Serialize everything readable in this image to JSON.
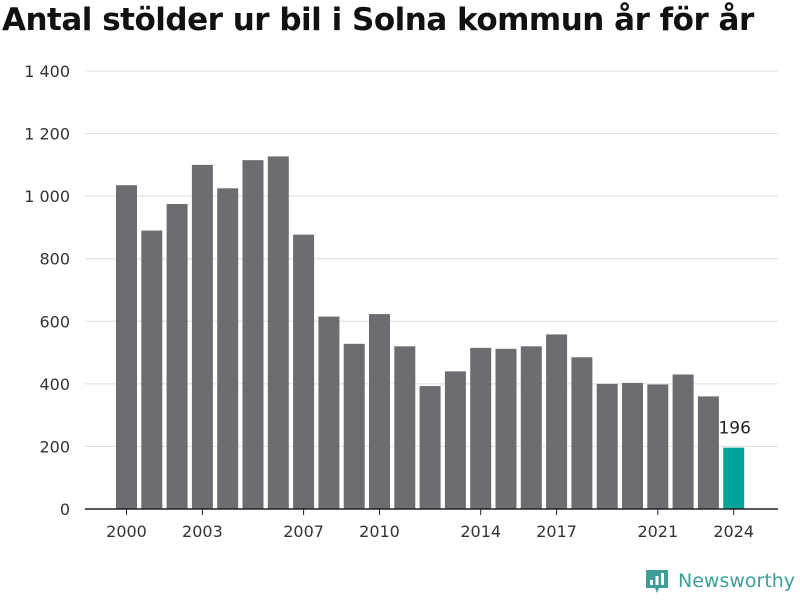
{
  "chart_data": {
    "type": "bar",
    "title": "Antal stölder ur bil i Solna kommun år för år",
    "x": [
      2000,
      2001,
      2002,
      2003,
      2004,
      2005,
      2006,
      2007,
      2008,
      2009,
      2010,
      2011,
      2012,
      2013,
      2014,
      2015,
      2016,
      2017,
      2018,
      2019,
      2020,
      2021,
      2022,
      2023,
      2024
    ],
    "values": [
      1035,
      890,
      975,
      1100,
      1025,
      1115,
      1127,
      877,
      615,
      528,
      623,
      520,
      393,
      440,
      515,
      512,
      520,
      558,
      485,
      400,
      403,
      398,
      430,
      360,
      196
    ],
    "x_tick_labels": [
      "2000",
      "2003",
      "2007",
      "2010",
      "2014",
      "2017",
      "2021",
      "2024"
    ],
    "y_tick_labels": [
      "0",
      "200",
      "400",
      "600",
      "800",
      "1 000",
      "1 200",
      "1 400"
    ],
    "y_ticks": [
      0,
      200,
      400,
      600,
      800,
      1000,
      1200,
      1400
    ],
    "ylim": [
      0,
      1400
    ],
    "xlabel": "",
    "ylabel": "",
    "grid": true,
    "highlight": {
      "year": 2024,
      "label": "196",
      "color": "#00a398"
    },
    "bar_color": "#6d6c71"
  },
  "brand": {
    "name": "Newsworthy",
    "icon": "newsworthy-logo-icon",
    "color": "#3d9e97"
  }
}
